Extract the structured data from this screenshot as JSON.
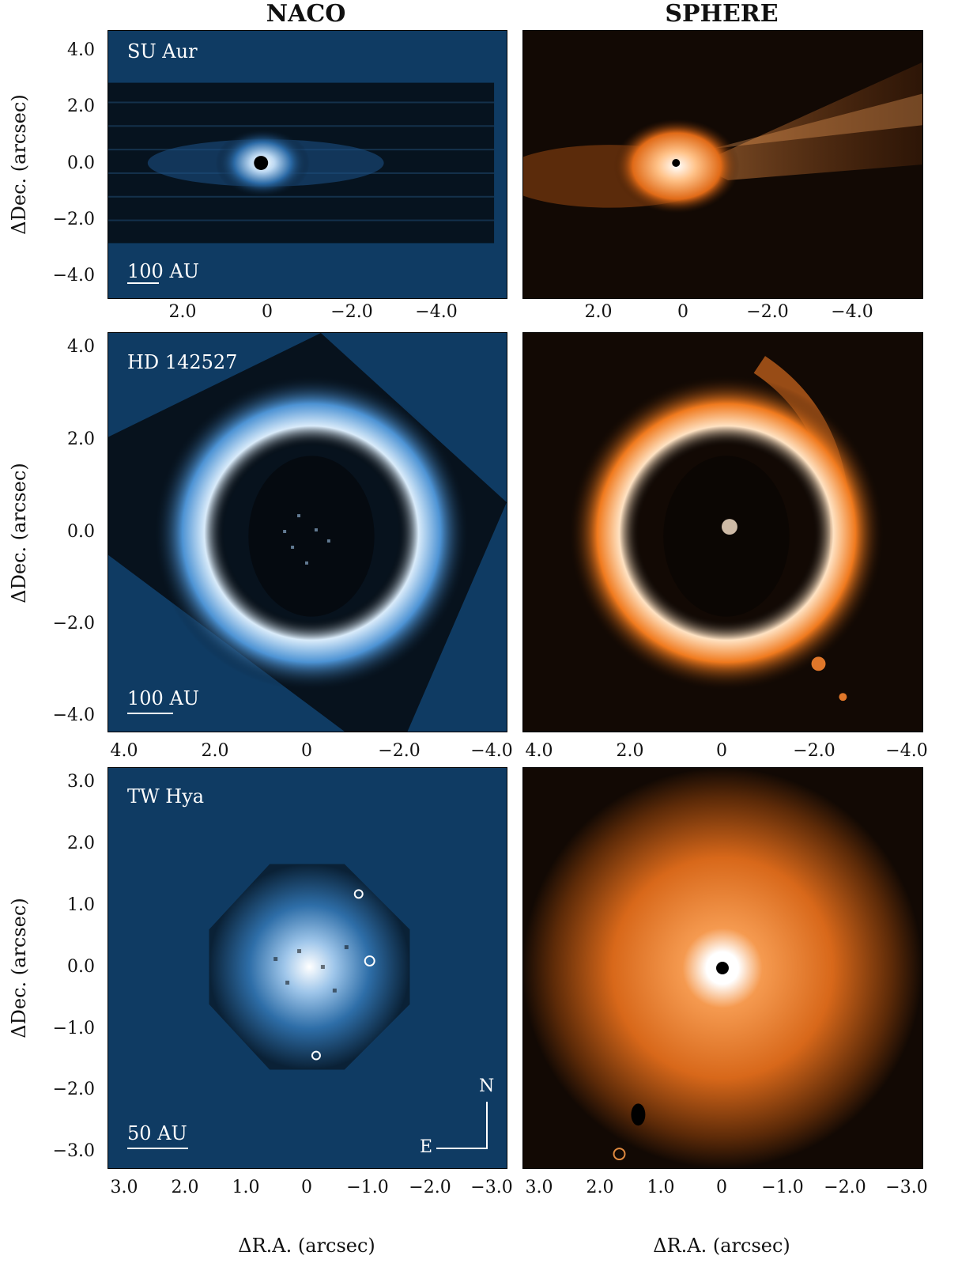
{
  "columns": [
    "NACO",
    "SPHERE"
  ],
  "colors": {
    "naco_bg": "#0f3b63",
    "naco_bright": "#eaf4ff",
    "naco_mid": "#3f84c4",
    "sphere_bg": "#0a0603",
    "sphere_bright": "#fff1e0",
    "sphere_mid": "#f27a1e"
  },
  "rows": [
    {
      "target": "SU Aur",
      "scale_label": "100 AU",
      "yticks": [
        "4.0",
        "2.0",
        "0.0",
        "−2.0",
        "−4.0"
      ],
      "xticks_naco": [
        "2.0",
        "0",
        "−2.0",
        "−4.0"
      ],
      "xticks_sphere": [
        "2.0",
        "0",
        "−2.0",
        "−4.0"
      ]
    },
    {
      "target": "HD 142527",
      "scale_label": "100 AU",
      "yticks": [
        "4.0",
        "2.0",
        "0.0",
        "−2.0",
        "−4.0"
      ],
      "xticks_naco": [
        "4.0",
        "2.0",
        "0",
        "−2.0",
        "−4.0"
      ],
      "xticks_sphere": [
        "4.0",
        "2.0",
        "0",
        "−2.0",
        "−4.0"
      ]
    },
    {
      "target": "TW Hya",
      "scale_label": "50 AU",
      "yticks": [
        "3.0",
        "2.0",
        "1.0",
        "0.0",
        "−1.0",
        "−2.0",
        "−3.0"
      ],
      "xticks_naco": [
        "3.0",
        "2.0",
        "1.0",
        "0",
        "−1.0",
        "−2.0",
        "−3.0"
      ],
      "xticks_sphere": [
        "3.0",
        "2.0",
        "1.0",
        "0",
        "−1.0",
        "−2.0",
        "−3.0"
      ]
    }
  ],
  "ylabel": "ΔDec. (arcsec)",
  "xlabel": "ΔR.A. (arcsec)",
  "compass": {
    "north": "N",
    "east": "E"
  }
}
